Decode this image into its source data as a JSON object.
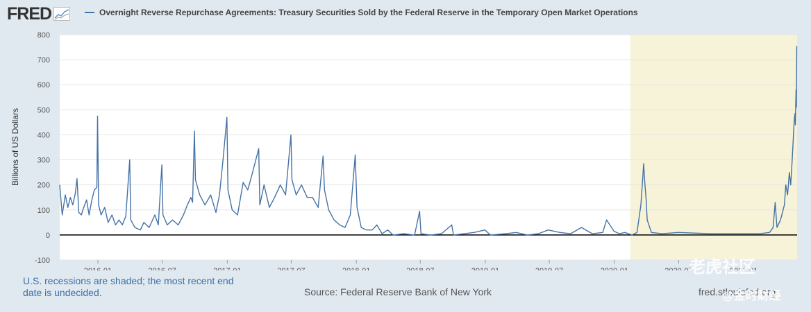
{
  "logo": {
    "text": "FRED",
    "icon": "chart-line-icon"
  },
  "colors": {
    "background": "#e1e9f0",
    "plot_background": "#ffffff",
    "series_line": "#4572a7",
    "recession_shade": "#f6f3d8",
    "grid": "#e6e6e6",
    "zero_line": "#000000"
  },
  "chart_data": {
    "type": "line",
    "title": "Overnight Reverse Repurchase Agreements: Treasury Securities Sold by the Federal Reserve in the Temporary Open Market Operations",
    "xlabel": "",
    "ylabel": "Billions of US Dollars",
    "ylim": [
      -100,
      800
    ],
    "xlim": [
      "2015-09-15",
      "2021-06-01"
    ],
    "y_ticks": [
      -100,
      0,
      100,
      200,
      300,
      400,
      500,
      600,
      700,
      800
    ],
    "x_ticks": [
      "2016-01",
      "2016-07",
      "2017-01",
      "2017-07",
      "2018-01",
      "2018-07",
      "2019-01",
      "2019-07",
      "2020-01",
      "2020-07",
      "2021-01"
    ],
    "grid": true,
    "legend": "top-left",
    "recession": {
      "start": "2020-02-15",
      "end": "2021-06-01"
    },
    "series": [
      {
        "name": "Overnight Reverse Repurchase Agreements: Treasury Securities Sold by the Federal Reserve in the Temporary Open Market Operations",
        "points": [
          [
            "2015-09-15",
            200
          ],
          [
            "2015-09-22",
            80
          ],
          [
            "2015-10-01",
            160
          ],
          [
            "2015-10-08",
            110
          ],
          [
            "2015-10-15",
            150
          ],
          [
            "2015-10-22",
            120
          ],
          [
            "2015-10-29",
            165
          ],
          [
            "2015-11-03",
            225
          ],
          [
            "2015-11-08",
            90
          ],
          [
            "2015-11-15",
            80
          ],
          [
            "2015-11-22",
            110
          ],
          [
            "2015-11-30",
            140
          ],
          [
            "2015-12-07",
            80
          ],
          [
            "2015-12-15",
            140
          ],
          [
            "2015-12-22",
            180
          ],
          [
            "2015-12-29",
            190
          ],
          [
            "2015-12-31",
            475
          ],
          [
            "2016-01-03",
            120
          ],
          [
            "2016-01-10",
            80
          ],
          [
            "2016-01-20",
            110
          ],
          [
            "2016-01-30",
            50
          ],
          [
            "2016-02-10",
            80
          ],
          [
            "2016-02-20",
            40
          ],
          [
            "2016-03-01",
            60
          ],
          [
            "2016-03-10",
            40
          ],
          [
            "2016-03-20",
            75
          ],
          [
            "2016-03-31",
            300
          ],
          [
            "2016-04-03",
            60
          ],
          [
            "2016-04-15",
            30
          ],
          [
            "2016-04-30",
            20
          ],
          [
            "2016-05-10",
            50
          ],
          [
            "2016-05-25",
            30
          ],
          [
            "2016-06-10",
            80
          ],
          [
            "2016-06-20",
            40
          ],
          [
            "2016-06-30",
            280
          ],
          [
            "2016-07-03",
            80
          ],
          [
            "2016-07-15",
            40
          ],
          [
            "2016-07-30",
            60
          ],
          [
            "2016-08-15",
            40
          ],
          [
            "2016-08-30",
            80
          ],
          [
            "2016-09-10",
            120
          ],
          [
            "2016-09-20",
            150
          ],
          [
            "2016-09-25",
            130
          ],
          [
            "2016-09-30",
            415
          ],
          [
            "2016-10-03",
            220
          ],
          [
            "2016-10-15",
            160
          ],
          [
            "2016-10-30",
            120
          ],
          [
            "2016-11-15",
            160
          ],
          [
            "2016-11-30",
            90
          ],
          [
            "2016-12-10",
            160
          ],
          [
            "2016-12-20",
            300
          ],
          [
            "2016-12-31",
            470
          ],
          [
            "2017-01-03",
            180
          ],
          [
            "2017-01-15",
            100
          ],
          [
            "2017-01-30",
            80
          ],
          [
            "2017-02-15",
            210
          ],
          [
            "2017-02-28",
            180
          ],
          [
            "2017-03-10",
            230
          ],
          [
            "2017-03-31",
            345
          ],
          [
            "2017-04-03",
            120
          ],
          [
            "2017-04-15",
            200
          ],
          [
            "2017-04-30",
            110
          ],
          [
            "2017-05-15",
            150
          ],
          [
            "2017-05-31",
            200
          ],
          [
            "2017-06-15",
            160
          ],
          [
            "2017-06-30",
            400
          ],
          [
            "2017-07-03",
            220
          ],
          [
            "2017-07-15",
            160
          ],
          [
            "2017-07-30",
            200
          ],
          [
            "2017-08-15",
            150
          ],
          [
            "2017-08-30",
            150
          ],
          [
            "2017-09-15",
            110
          ],
          [
            "2017-09-29",
            315
          ],
          [
            "2017-10-03",
            180
          ],
          [
            "2017-10-15",
            100
          ],
          [
            "2017-10-30",
            60
          ],
          [
            "2017-11-15",
            40
          ],
          [
            "2017-11-30",
            30
          ],
          [
            "2017-12-15",
            80
          ],
          [
            "2017-12-29",
            320
          ],
          [
            "2018-01-03",
            110
          ],
          [
            "2018-01-15",
            30
          ],
          [
            "2018-01-30",
            20
          ],
          [
            "2018-02-15",
            20
          ],
          [
            "2018-02-28",
            40
          ],
          [
            "2018-03-15",
            5
          ],
          [
            "2018-03-31",
            20
          ],
          [
            "2018-04-15",
            0
          ],
          [
            "2018-05-15",
            5
          ],
          [
            "2018-06-15",
            0
          ],
          [
            "2018-06-29",
            95
          ],
          [
            "2018-07-03",
            5
          ],
          [
            "2018-07-30",
            0
          ],
          [
            "2018-08-30",
            5
          ],
          [
            "2018-09-28",
            40
          ],
          [
            "2018-10-03",
            0
          ],
          [
            "2018-11-30",
            10
          ],
          [
            "2018-12-31",
            20
          ],
          [
            "2019-01-15",
            0
          ],
          [
            "2019-02-28",
            5
          ],
          [
            "2019-03-29",
            10
          ],
          [
            "2019-04-30",
            0
          ],
          [
            "2019-05-31",
            5
          ],
          [
            "2019-06-28",
            20
          ],
          [
            "2019-07-31",
            10
          ],
          [
            "2019-08-30",
            5
          ],
          [
            "2019-09-30",
            30
          ],
          [
            "2019-10-31",
            5
          ],
          [
            "2019-11-29",
            10
          ],
          [
            "2019-12-10",
            60
          ],
          [
            "2019-12-31",
            15
          ],
          [
            "2020-01-15",
            5
          ],
          [
            "2020-01-31",
            10
          ],
          [
            "2020-02-20",
            0
          ],
          [
            "2020-03-05",
            10
          ],
          [
            "2020-03-16",
            120
          ],
          [
            "2020-03-20",
            200
          ],
          [
            "2020-03-24",
            285
          ],
          [
            "2020-03-27",
            210
          ],
          [
            "2020-03-31",
            140
          ],
          [
            "2020-04-03",
            60
          ],
          [
            "2020-04-15",
            10
          ],
          [
            "2020-05-15",
            5
          ],
          [
            "2020-06-30",
            10
          ],
          [
            "2020-09-30",
            5
          ],
          [
            "2020-12-31",
            5
          ],
          [
            "2021-02-15",
            5
          ],
          [
            "2021-03-15",
            10
          ],
          [
            "2021-03-25",
            30
          ],
          [
            "2021-03-31",
            130
          ],
          [
            "2021-04-05",
            30
          ],
          [
            "2021-04-15",
            60
          ],
          [
            "2021-04-26",
            120
          ],
          [
            "2021-04-30",
            200
          ],
          [
            "2021-05-05",
            160
          ],
          [
            "2021-05-10",
            250
          ],
          [
            "2021-05-14",
            200
          ],
          [
            "2021-05-18",
            300
          ],
          [
            "2021-05-21",
            380
          ],
          [
            "2021-05-24",
            460
          ],
          [
            "2021-05-26",
            485
          ],
          [
            "2021-05-27",
            440
          ],
          [
            "2021-05-28",
            520
          ],
          [
            "2021-05-29",
            580
          ],
          [
            "2021-05-30",
            510
          ],
          [
            "2021-05-31",
            755
          ]
        ]
      }
    ]
  },
  "footer": {
    "recession_note": "U.S. recessions are shaded; the most recent end date is undecided.",
    "source": "Source: Federal Reserve Bank of New York",
    "site": "fred.stlouisfed.org"
  },
  "watermark": {
    "line1": "老虎社区",
    "line2": "@金时财经"
  }
}
